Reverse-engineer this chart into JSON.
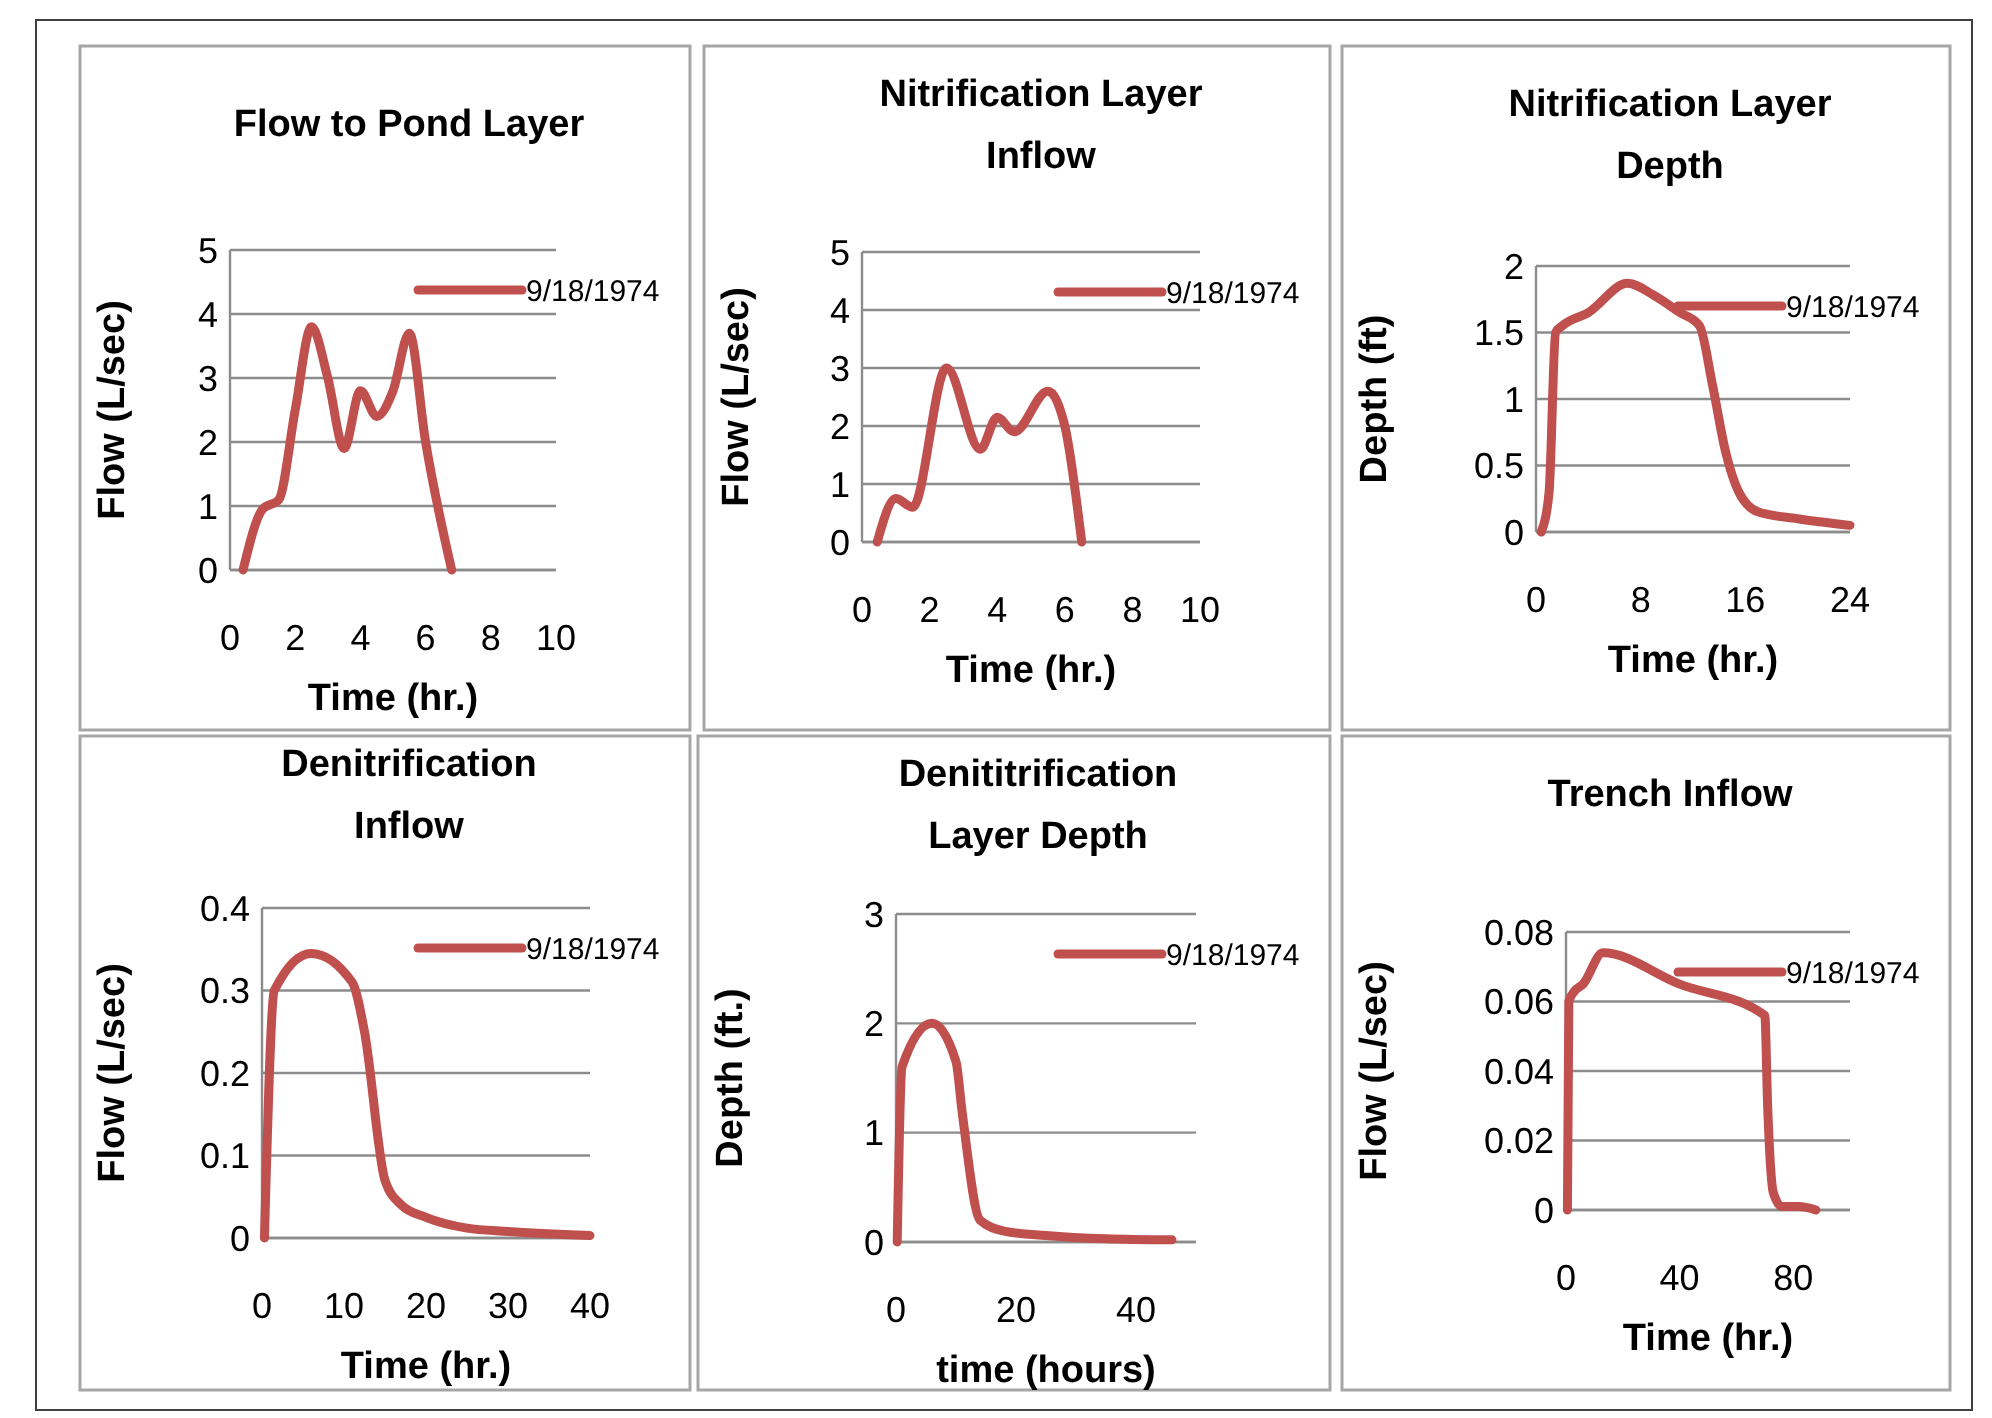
{
  "chart_data": [
    {
      "type": "line",
      "title": "Flow to Pond Layer",
      "xlabel": "Time (hr.)",
      "ylabel": "Flow (L/sec)",
      "xlim": [
        0,
        10
      ],
      "xticks": [
        0,
        2,
        4,
        6,
        8,
        10
      ],
      "ylim": [
        0,
        5
      ],
      "yticks": [
        0,
        1,
        2,
        3,
        4,
        5
      ],
      "grid": "y",
      "legend": "top right",
      "x": [
        0.4,
        1,
        1.5,
        2,
        2.5,
        3,
        3.5,
        4,
        4.5,
        5,
        5.5,
        6,
        6.8
      ],
      "series": [
        {
          "name": "9/18/1974",
          "color": "#c0504d",
          "values": [
            0,
            0.95,
            1.1,
            2.5,
            3.8,
            3,
            1.9,
            2.8,
            2.4,
            2.8,
            3.7,
            2,
            0
          ]
        }
      ]
    },
    {
      "type": "line",
      "title": "Nitrification Layer Inflow",
      "xlabel": "Time (hr.)",
      "ylabel": "Flow (L/sec)",
      "xlim": [
        0,
        10
      ],
      "xticks": [
        0,
        2,
        4,
        6,
        8,
        10
      ],
      "ylim": [
        0,
        5
      ],
      "yticks": [
        0,
        1,
        2,
        3,
        4,
        5
      ],
      "grid": "y",
      "legend": "top right",
      "x": [
        0.45,
        1,
        1.5,
        2.5,
        3.5,
        4,
        4.5,
        5.5,
        6,
        6.5
      ],
      "series": [
        {
          "name": "9/18/1974",
          "color": "#c0504d",
          "values": [
            0,
            0.75,
            0.6,
            3,
            1.6,
            2.15,
            1.9,
            2.6,
            2,
            0
          ]
        }
      ]
    },
    {
      "type": "line",
      "title": "Nitrification Layer Depth",
      "xlabel": "Time (hr.)",
      "ylabel": "Depth (ft)",
      "xlim": [
        0,
        24
      ],
      "xticks": [
        0,
        8,
        16,
        24
      ],
      "ylim": [
        0,
        2
      ],
      "yticks": [
        0,
        0.5,
        1,
        1.5,
        2
      ],
      "grid": "y",
      "legend": "top right",
      "x": [
        0.4,
        1,
        1.5,
        2,
        4,
        7,
        9,
        11,
        12.5,
        13.5,
        14.5,
        15.5,
        17,
        20,
        24
      ],
      "series": [
        {
          "name": "9/18/1974",
          "color": "#c0504d",
          "values": [
            0,
            0.3,
            1.5,
            1.55,
            1.65,
            1.87,
            1.78,
            1.65,
            1.55,
            1.1,
            0.6,
            0.3,
            0.15,
            0.1,
            0.05
          ]
        }
      ]
    },
    {
      "type": "line",
      "title": "Denitrification Inflow",
      "xlabel": "Time (hr.)",
      "ylabel": "Flow (L/sec)",
      "xlim": [
        0,
        40
      ],
      "xticks": [
        0,
        10,
        20,
        30,
        40
      ],
      "ylim": [
        0,
        0.4
      ],
      "yticks": [
        0,
        0.1,
        0.2,
        0.3,
        0.4
      ],
      "grid": "y",
      "legend": "top right",
      "x": [
        0.3,
        1.5,
        6,
        11,
        12.5,
        15,
        17,
        20,
        25,
        30,
        40
      ],
      "series": [
        {
          "name": "9/18/1974",
          "color": "#c0504d",
          "values": [
            0,
            0.3,
            0.345,
            0.31,
            0.25,
            0.07,
            0.04,
            0.025,
            0.012,
            0.008,
            0.003
          ]
        }
      ]
    },
    {
      "type": "line",
      "title": "Denititrification Layer Depth",
      "xlabel": "time (hours)",
      "ylabel": "Depth (ft.)",
      "xlim": [
        0,
        50
      ],
      "xticks": [
        0,
        20,
        40
      ],
      "ylim": [
        0,
        3
      ],
      "yticks": [
        0,
        1,
        2,
        3
      ],
      "grid": "y",
      "legend": "top right",
      "x": [
        0.2,
        1,
        6,
        10,
        11,
        14,
        18,
        25,
        35,
        46
      ],
      "series": [
        {
          "name": "9/18/1974",
          "color": "#c0504d",
          "values": [
            0,
            1.6,
            2,
            1.65,
            1.2,
            0.2,
            0.1,
            0.06,
            0.03,
            0.02
          ]
        }
      ]
    },
    {
      "type": "line",
      "title": "Trench Inflow",
      "xlabel": "Time (hr.)",
      "ylabel": "Flow (L/sec)",
      "xlim": [
        0,
        100
      ],
      "xticks": [
        0,
        40,
        80
      ],
      "ylim": [
        0,
        0.08
      ],
      "yticks": [
        0,
        0.02,
        0.04,
        0.06,
        0.08
      ],
      "grid": "y",
      "legend": "top right",
      "x": [
        0.5,
        1,
        3,
        6,
        13,
        40,
        70,
        71,
        73,
        76,
        82,
        88
      ],
      "series": [
        {
          "name": "9/18/1974",
          "color": "#c0504d",
          "values": [
            0,
            0.06,
            0.063,
            0.065,
            0.074,
            0.065,
            0.056,
            0.03,
            0.005,
            0.001,
            0.001,
            0
          ]
        }
      ]
    }
  ]
}
